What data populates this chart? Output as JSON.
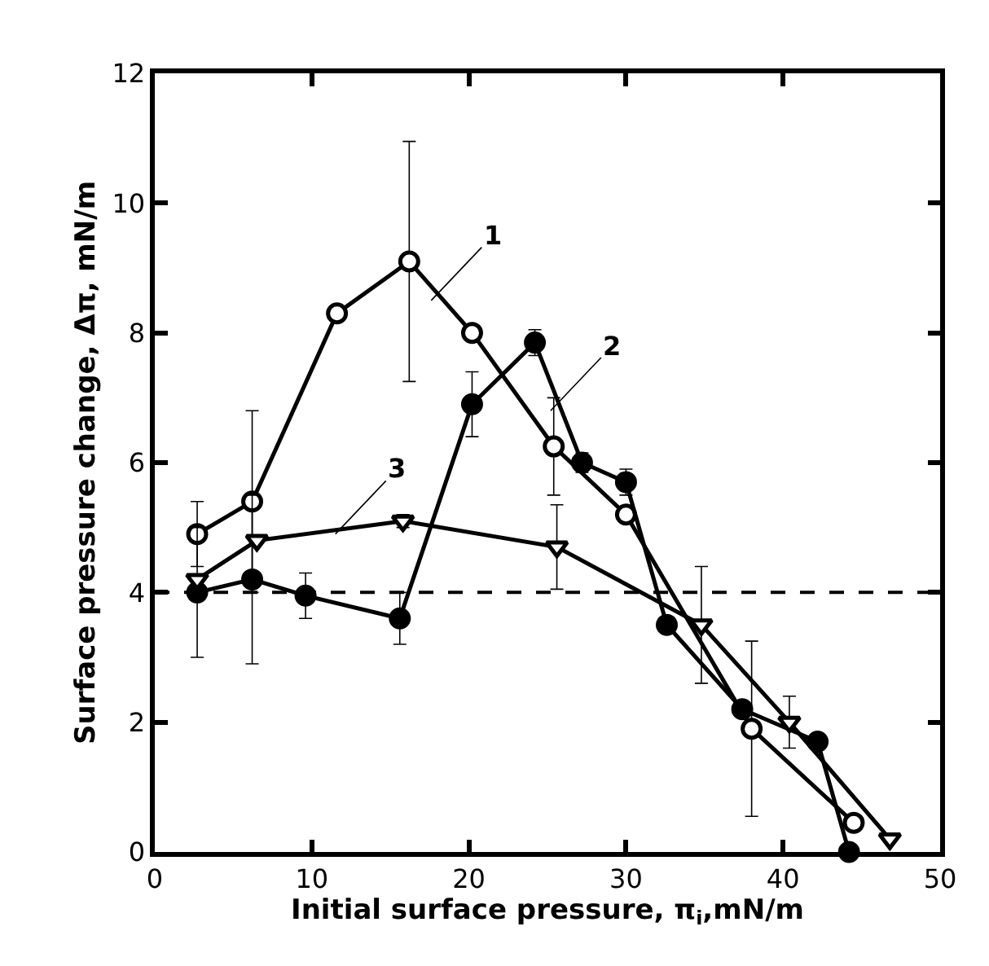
{
  "chart_data": {
    "type": "line",
    "xlabel": "Initial surface pressure, π$_{i}$,mN/m",
    "ylabel": "Surface pressure change, Δπ, mN/m",
    "xlim": [
      0,
      50
    ],
    "xticks": [
      0,
      10,
      20,
      30,
      40,
      50
    ],
    "ylim": [
      0,
      12
    ],
    "yticks": [
      0,
      2,
      4,
      6,
      8,
      10,
      12
    ],
    "grid": false,
    "series": [
      {
        "color": "#000000",
        "marker": "circle-open",
        "x": [
          2.7,
          6.2,
          11.6,
          16.2,
          20.2,
          25.4,
          30.0,
          38.0,
          44.5
        ],
        "values": [
          4.9,
          5.4,
          8.3,
          9.1,
          8.0,
          6.25,
          5.2,
          1.9,
          0.45
        ],
        "errors": [
          0.5,
          1.4,
          null,
          1.85,
          null,
          0.75,
          null,
          1.35,
          null
        ]
      },
      {
        "color": "#000000",
        "marker": "circle",
        "x": [
          2.7,
          6.2,
          9.6,
          15.6,
          20.2,
          24.2,
          27.2,
          30.0,
          32.6,
          37.4,
          42.2,
          44.2
        ],
        "values": [
          4.0,
          4.2,
          3.95,
          3.6,
          6.9,
          7.85,
          6.0,
          5.7,
          3.5,
          2.2,
          1.7,
          0.0
        ],
        "errors": [
          1.0,
          1.3,
          0.35,
          0.4,
          0.5,
          0.2,
          0.15,
          0.2,
          null,
          null,
          null,
          null
        ]
      },
      {
        "color": "#000000",
        "marker": "triangle-down-open",
        "x": [
          2.7,
          6.5,
          15.8,
          25.6,
          34.8,
          40.4,
          46.8
        ],
        "values": [
          4.2,
          4.8,
          5.1,
          4.7,
          3.5,
          2.0,
          0.2
        ],
        "errors": [
          null,
          null,
          0.1,
          0.65,
          0.9,
          0.4,
          null
        ]
      }
    ],
    "ref_lines": [
      {
        "axis": "y",
        "value": 4,
        "color": "#000000",
        "line_style": "dashed"
      }
    ],
    "annotations": [
      {
        "text": "1",
        "x": 17.6,
        "y": 8.5
      },
      {
        "text": "2",
        "x": 25.2,
        "y": 6.8
      },
      {
        "text": "3",
        "x": 11.5,
        "y": 4.9
      }
    ]
  }
}
